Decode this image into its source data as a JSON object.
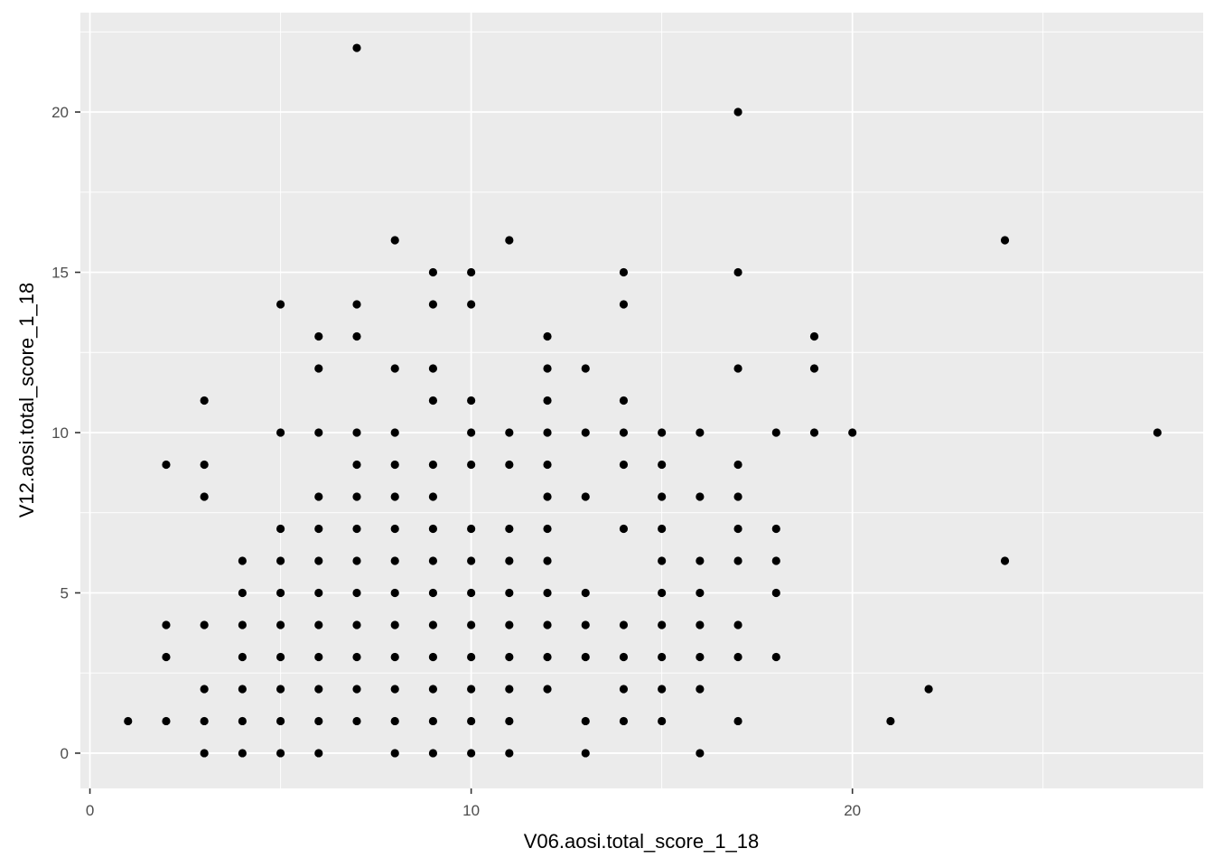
{
  "chart_data": {
    "type": "scatter",
    "title": "",
    "xlabel": "V06.aosi.total_score_1_18",
    "ylabel": "V12.aosi.total_score_1_18",
    "xlim": [
      -0.25,
      29.2
    ],
    "ylim": [
      -1.1,
      23.1
    ],
    "x_ticks": [
      0,
      10,
      20
    ],
    "y_ticks": [
      0,
      5,
      10,
      15,
      20
    ],
    "x_tick_labels": [
      "0",
      "10",
      "20"
    ],
    "y_tick_labels": [
      "0",
      "5",
      "10",
      "15",
      "20"
    ],
    "grid": true,
    "legend": "none",
    "colors": {
      "panel": "#ebebeb",
      "grid_major": "#ffffff",
      "point": "#000000",
      "tick_label": "#4d4d4d",
      "axis_title": "#000000"
    },
    "points": [
      [
        1,
        1
      ],
      [
        2,
        1
      ],
      [
        2,
        3
      ],
      [
        2,
        4
      ],
      [
        2,
        9
      ],
      [
        3,
        0
      ],
      [
        3,
        1
      ],
      [
        3,
        2
      ],
      [
        3,
        4
      ],
      [
        3,
        8
      ],
      [
        3,
        9
      ],
      [
        3,
        11
      ],
      [
        4,
        0
      ],
      [
        4,
        1
      ],
      [
        4,
        2
      ],
      [
        4,
        3
      ],
      [
        4,
        4
      ],
      [
        4,
        5
      ],
      [
        4,
        6
      ],
      [
        5,
        0
      ],
      [
        5,
        1
      ],
      [
        5,
        2
      ],
      [
        5,
        3
      ],
      [
        5,
        4
      ],
      [
        5,
        5
      ],
      [
        5,
        6
      ],
      [
        5,
        7
      ],
      [
        5,
        10
      ],
      [
        5,
        14
      ],
      [
        6,
        0
      ],
      [
        6,
        1
      ],
      [
        6,
        2
      ],
      [
        6,
        3
      ],
      [
        6,
        4
      ],
      [
        6,
        5
      ],
      [
        6,
        6
      ],
      [
        6,
        7
      ],
      [
        6,
        8
      ],
      [
        6,
        10
      ],
      [
        6,
        12
      ],
      [
        6,
        13
      ],
      [
        7,
        1
      ],
      [
        7,
        2
      ],
      [
        7,
        3
      ],
      [
        7,
        4
      ],
      [
        7,
        5
      ],
      [
        7,
        6
      ],
      [
        7,
        7
      ],
      [
        7,
        8
      ],
      [
        7,
        9
      ],
      [
        7,
        10
      ],
      [
        7,
        13
      ],
      [
        7,
        14
      ],
      [
        7,
        22
      ],
      [
        8,
        0
      ],
      [
        8,
        1
      ],
      [
        8,
        2
      ],
      [
        8,
        3
      ],
      [
        8,
        4
      ],
      [
        8,
        5
      ],
      [
        8,
        6
      ],
      [
        8,
        7
      ],
      [
        8,
        8
      ],
      [
        8,
        9
      ],
      [
        8,
        10
      ],
      [
        8,
        12
      ],
      [
        8,
        16
      ],
      [
        9,
        0
      ],
      [
        9,
        1
      ],
      [
        9,
        2
      ],
      [
        9,
        3
      ],
      [
        9,
        4
      ],
      [
        9,
        5
      ],
      [
        9,
        6
      ],
      [
        9,
        7
      ],
      [
        9,
        8
      ],
      [
        9,
        9
      ],
      [
        9,
        11
      ],
      [
        9,
        12
      ],
      [
        9,
        14
      ],
      [
        9,
        15
      ],
      [
        10,
        0
      ],
      [
        10,
        1
      ],
      [
        10,
        2
      ],
      [
        10,
        3
      ],
      [
        10,
        4
      ],
      [
        10,
        5
      ],
      [
        10,
        6
      ],
      [
        10,
        7
      ],
      [
        10,
        9
      ],
      [
        10,
        10
      ],
      [
        10,
        11
      ],
      [
        10,
        14
      ],
      [
        10,
        15
      ],
      [
        11,
        0
      ],
      [
        11,
        1
      ],
      [
        11,
        2
      ],
      [
        11,
        3
      ],
      [
        11,
        4
      ],
      [
        11,
        5
      ],
      [
        11,
        6
      ],
      [
        11,
        7
      ],
      [
        11,
        9
      ],
      [
        11,
        10
      ],
      [
        11,
        16
      ],
      [
        12,
        2
      ],
      [
        12,
        3
      ],
      [
        12,
        4
      ],
      [
        12,
        5
      ],
      [
        12,
        6
      ],
      [
        12,
        7
      ],
      [
        12,
        8
      ],
      [
        12,
        9
      ],
      [
        12,
        10
      ],
      [
        12,
        11
      ],
      [
        12,
        12
      ],
      [
        12,
        13
      ],
      [
        13,
        0
      ],
      [
        13,
        1
      ],
      [
        13,
        3
      ],
      [
        13,
        4
      ],
      [
        13,
        5
      ],
      [
        13,
        8
      ],
      [
        13,
        10
      ],
      [
        13,
        12
      ],
      [
        14,
        1
      ],
      [
        14,
        2
      ],
      [
        14,
        3
      ],
      [
        14,
        4
      ],
      [
        14,
        7
      ],
      [
        14,
        9
      ],
      [
        14,
        10
      ],
      [
        14,
        11
      ],
      [
        14,
        14
      ],
      [
        14,
        15
      ],
      [
        15,
        1
      ],
      [
        15,
        2
      ],
      [
        15,
        3
      ],
      [
        15,
        4
      ],
      [
        15,
        5
      ],
      [
        15,
        6
      ],
      [
        15,
        7
      ],
      [
        15,
        8
      ],
      [
        15,
        9
      ],
      [
        15,
        10
      ],
      [
        16,
        0
      ],
      [
        16,
        2
      ],
      [
        16,
        3
      ],
      [
        16,
        4
      ],
      [
        16,
        5
      ],
      [
        16,
        6
      ],
      [
        16,
        8
      ],
      [
        16,
        10
      ],
      [
        17,
        1
      ],
      [
        17,
        3
      ],
      [
        17,
        4
      ],
      [
        17,
        6
      ],
      [
        17,
        7
      ],
      [
        17,
        8
      ],
      [
        17,
        9
      ],
      [
        17,
        12
      ],
      [
        17,
        15
      ],
      [
        17,
        20
      ],
      [
        18,
        3
      ],
      [
        18,
        5
      ],
      [
        18,
        6
      ],
      [
        18,
        7
      ],
      [
        18,
        10
      ],
      [
        19,
        10
      ],
      [
        19,
        12
      ],
      [
        19,
        13
      ],
      [
        20,
        10
      ],
      [
        21,
        1
      ],
      [
        22,
        2
      ],
      [
        24,
        6
      ],
      [
        24,
        16
      ],
      [
        28,
        10
      ]
    ]
  }
}
